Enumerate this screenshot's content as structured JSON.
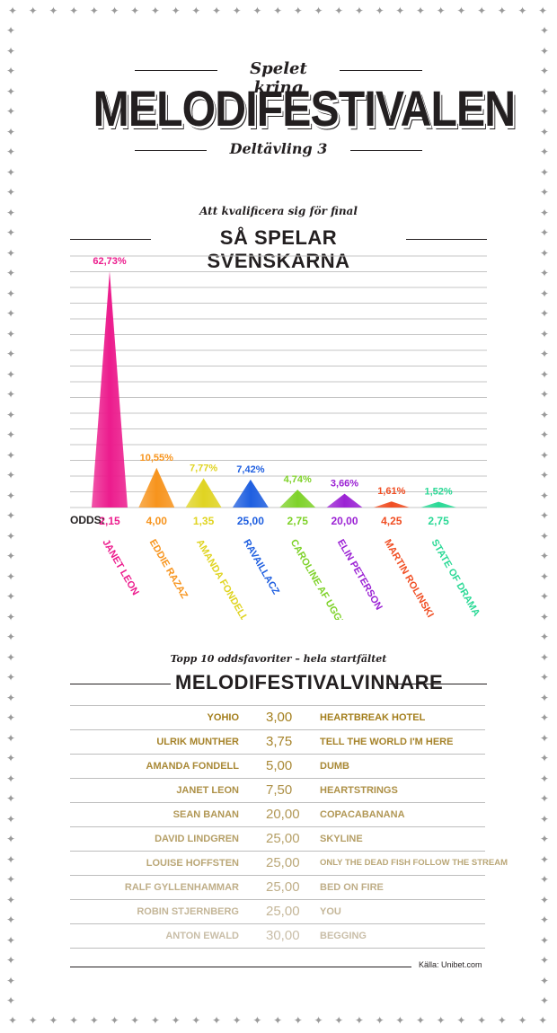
{
  "header": {
    "top": "Spelet kring",
    "main": "MELODIFESTIVALEN",
    "sub": "Deltävling 3"
  },
  "section1": {
    "kicker": "Att kvalificera sig för final",
    "title": "SÅ SPELAR SVENSKARNA",
    "odds_label": "ODDS:"
  },
  "chart_data": {
    "type": "bar",
    "title": "SÅ SPELAR SVENSKARNA",
    "categories": [
      "JANET LEON",
      "EDDIE RAZAZ",
      "AMANDA FONDELL",
      "RAVAILLACZ",
      "CAROLINE AF UGGLAS",
      "ELIN PETERSON",
      "MARTIN ROLINSKI",
      "STATE OF DRAMA"
    ],
    "values": [
      62.73,
      10.55,
      7.77,
      7.42,
      4.74,
      3.66,
      1.61,
      1.52
    ],
    "value_labels": [
      "62,73%",
      "10,55%",
      "7,77%",
      "7,42%",
      "4,74%",
      "3,66%",
      "1,61%",
      "1,52%"
    ],
    "odds": [
      "2,15",
      "4,00",
      "1,35",
      "25,00",
      "2,75",
      "20,00",
      "4,25",
      "2,75"
    ],
    "colors": [
      "#ec1c8d",
      "#f7941d",
      "#e0d422",
      "#1f5fe0",
      "#7fd22a",
      "#9b22d4",
      "#f04e23",
      "#2bd996"
    ],
    "ylim": [
      0,
      62.73
    ],
    "grid": true
  },
  "section2": {
    "kicker": "Topp 10 oddsfavoriter – hela startfältet",
    "title": "MELODIFESTIVALVINNARE",
    "rows": [
      {
        "artist": "YOHIO",
        "odds": "3,00",
        "song": "HEARTBREAK HOTEL",
        "color": "#a37e1c"
      },
      {
        "artist": "ULRIK MUNTHER",
        "odds": "3,75",
        "song": "TELL THE WORLD I'M HERE",
        "color": "#a6832a"
      },
      {
        "artist": "AMANDA FONDELL",
        "odds": "5,00",
        "song": "DUMB",
        "color": "#a98937"
      },
      {
        "artist": "JANET LEON",
        "odds": "7,50",
        "song": "HEARTSTRINGS",
        "color": "#ad9046"
      },
      {
        "artist": "SEAN BANAN",
        "odds": "20,00",
        "song": "COPACABANANA",
        "color": "#b19755"
      },
      {
        "artist": "DAVID LINDGREN",
        "odds": "25,00",
        "song": "SKYLINE",
        "color": "#b59f66"
      },
      {
        "artist": "LOUISE HOFFSTEN",
        "odds": "25,00",
        "song": "ONLY THE DEAD FISH FOLLOW THE STREAM",
        "color": "#baa777"
      },
      {
        "artist": "RALF GYLLENHAMMAR",
        "odds": "25,00",
        "song": "BED ON FIRE",
        "color": "#bfae88"
      },
      {
        "artist": "ROBIN STJERNBERG",
        "odds": "25,00",
        "song": "YOU",
        "color": "#c4b698"
      },
      {
        "artist": "ANTON EWALD",
        "odds": "30,00",
        "song": "BEGGING",
        "color": "#c9bea8"
      }
    ]
  },
  "footer": {
    "source": "Källa: Unibet.com"
  }
}
